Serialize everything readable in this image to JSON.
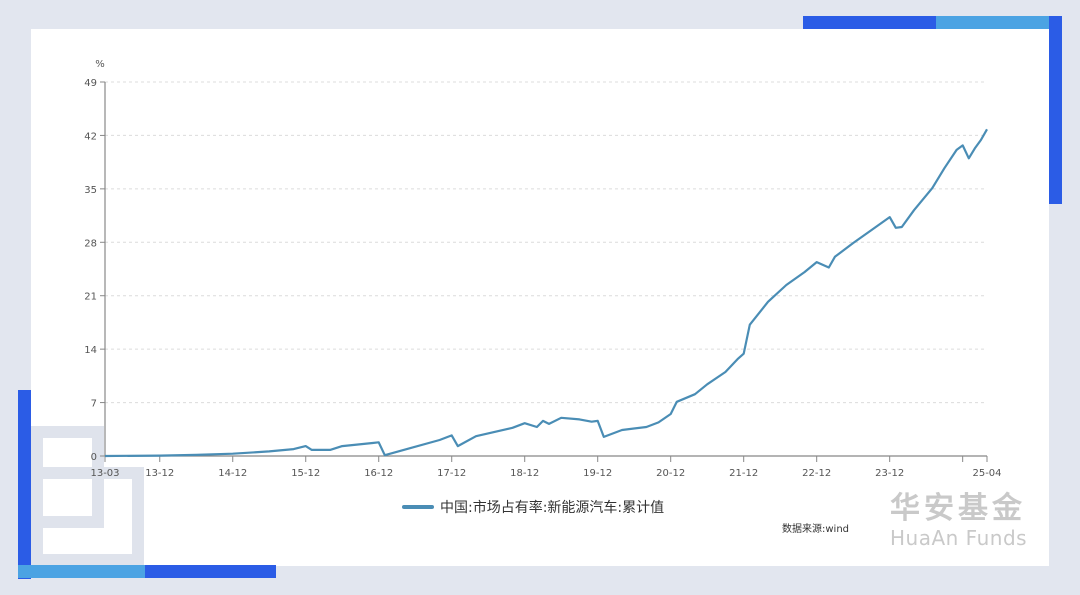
{
  "chart_data": {
    "type": "line",
    "title": "",
    "ylabel": "%",
    "xlabel": "",
    "ylim": [
      0,
      49
    ],
    "yticks": [
      0,
      7,
      14,
      21,
      28,
      35,
      42,
      49
    ],
    "xtick_labels": [
      "13-03",
      "13-12",
      "14-12",
      "15-12",
      "16-12",
      "17-12",
      "18-12",
      "19-12",
      "20-12",
      "21-12",
      "22-12",
      "23-12",
      "",
      "25-04"
    ],
    "grid": "horizontal dashed",
    "legend_position": "bottom-center",
    "series": [
      {
        "name": "中国:市场占有率:新能源汽车:累计值",
        "color": "#4a8db5",
        "points": [
          [
            "13-03",
            0.0
          ],
          [
            "13-12",
            0.05
          ],
          [
            "14-06",
            0.15
          ],
          [
            "14-12",
            0.3
          ],
          [
            "15-06",
            0.6
          ],
          [
            "15-10",
            0.9
          ],
          [
            "15-12",
            1.3
          ],
          [
            "16-01",
            0.8
          ],
          [
            "16-04",
            0.8
          ],
          [
            "16-06",
            1.3
          ],
          [
            "16-11",
            1.7
          ],
          [
            "16-12",
            1.8
          ],
          [
            "17-01",
            0.1
          ],
          [
            "17-05",
            1.0
          ],
          [
            "17-10",
            2.1
          ],
          [
            "17-12",
            2.7
          ],
          [
            "18-01",
            1.3
          ],
          [
            "18-04",
            2.6
          ],
          [
            "18-10",
            3.7
          ],
          [
            "18-12",
            4.3
          ],
          [
            "19-02",
            3.8
          ],
          [
            "19-03",
            4.6
          ],
          [
            "19-04",
            4.2
          ],
          [
            "19-06",
            5.0
          ],
          [
            "19-09",
            4.8
          ],
          [
            "19-11",
            4.5
          ],
          [
            "19-12",
            4.6
          ],
          [
            "20-01",
            2.5
          ],
          [
            "20-04",
            3.4
          ],
          [
            "20-08",
            3.8
          ],
          [
            "20-10",
            4.4
          ],
          [
            "20-12",
            5.5
          ],
          [
            "21-01",
            7.1
          ],
          [
            "21-04",
            8.1
          ],
          [
            "21-06",
            9.4
          ],
          [
            "21-09",
            11.0
          ],
          [
            "21-11",
            12.7
          ],
          [
            "21-12",
            13.4
          ],
          [
            "22-01",
            17.2
          ],
          [
            "22-04",
            20.2
          ],
          [
            "22-07",
            22.4
          ],
          [
            "22-10",
            24.1
          ],
          [
            "22-12",
            25.4
          ],
          [
            "23-02",
            24.7
          ],
          [
            "23-03",
            26.1
          ],
          [
            "23-06",
            27.9
          ],
          [
            "23-09",
            29.6
          ],
          [
            "23-12",
            31.3
          ],
          [
            "24-01",
            29.9
          ],
          [
            "24-02",
            30.0
          ],
          [
            "24-04",
            32.2
          ],
          [
            "24-07",
            35.1
          ],
          [
            "24-09",
            37.7
          ],
          [
            "24-11",
            40.1
          ],
          [
            "24-12",
            40.7
          ],
          [
            "25-01",
            39.0
          ],
          [
            "25-02",
            40.3
          ],
          [
            "25-03",
            41.4
          ],
          [
            "25-04",
            42.8
          ]
        ]
      }
    ]
  },
  "chart": {
    "y_unit": "%",
    "y_ticks": [
      "0",
      "7",
      "14",
      "21",
      "28",
      "35",
      "42",
      "49"
    ],
    "x_ticks": [
      "13-03",
      "13-12",
      "14-12",
      "15-12",
      "16-12",
      "17-12",
      "18-12",
      "19-12",
      "20-12",
      "21-12",
      "22-12",
      "23-12",
      "25-04"
    ]
  },
  "legend": {
    "label": "中国:市场占有率:新能源汽车:累计值"
  },
  "source": "数据来源:wind",
  "brand": {
    "cn": "华安基金",
    "en": "HuaAn Funds"
  },
  "colors": {
    "line": "#4a8db5",
    "accent_blue": "#2b5ce6",
    "light_blue": "#4ba3e3",
    "background": "#e2e6ef"
  }
}
